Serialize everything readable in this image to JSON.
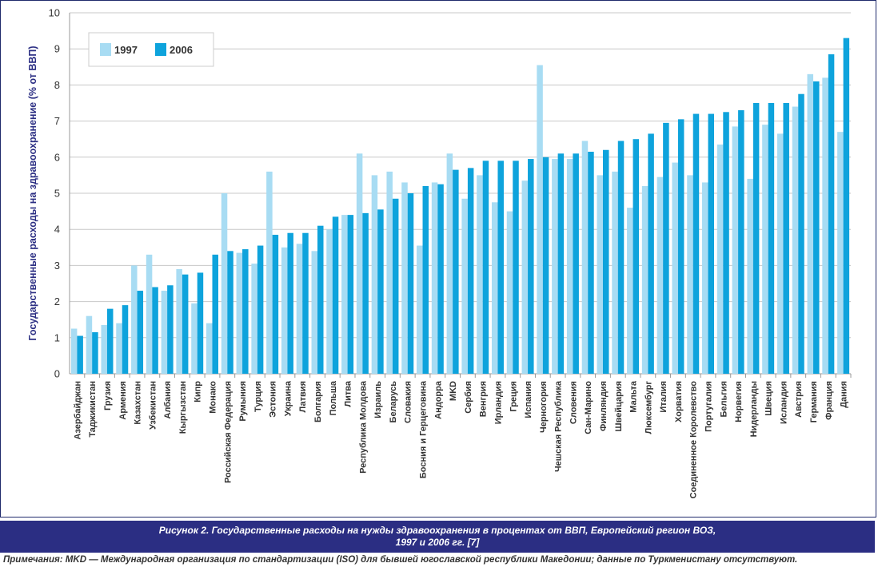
{
  "chart_data": {
    "type": "bar",
    "title": "",
    "xlabel": "",
    "ylabel": "Государственные расходы на здравоохранение (% от ВВП)",
    "ylim": [
      0,
      10
    ],
    "yticks": [
      "0",
      "1",
      "2",
      "3",
      "4",
      "5",
      "6",
      "7",
      "8",
      "9",
      "10"
    ],
    "grid": true,
    "legend_position": "top-left",
    "colors": {
      "1997": "#a8dcf3",
      "2006": "#0ea3dc"
    },
    "categories": [
      "Азербайджан",
      "Таджикистан",
      "Грузия",
      "Армения",
      "Казахстан",
      "Узбекистан",
      "Албания",
      "Кыргызстан",
      "Кипр",
      "Монако",
      "Российская Федерация",
      "Румыния",
      "Турция",
      "Эстония",
      "Украина",
      "Латвия",
      "Болгария",
      "Польша",
      "Литва",
      "Республика Молдова",
      "Израиль",
      "Беларусь",
      "Словакия",
      "Босния и Герцеговина",
      "Андорра",
      "MKD",
      "Сербия",
      "Венгрия",
      "Ирландия",
      "Греция",
      "Испания",
      "Черногория",
      "Чешская Республика",
      "Словения",
      "Сан-Марино",
      "Финляндия",
      "Швейцария",
      "Мальта",
      "Люксембург",
      "Италия",
      "Хорватия",
      "Соединенное Королевство",
      "Португалия",
      "Бельгия",
      "Норвегия",
      "Нидерланды",
      "Швеция",
      "Исландия",
      "Австрия",
      "Германия",
      "Франция",
      "Дания"
    ],
    "series": [
      {
        "name": "1997",
        "values": [
          1.25,
          1.6,
          1.35,
          1.4,
          3.0,
          3.3,
          2.3,
          2.9,
          1.95,
          1.4,
          5.0,
          3.35,
          3.05,
          5.6,
          3.5,
          3.6,
          3.4,
          4.0,
          4.4,
          6.1,
          5.5,
          5.6,
          5.3,
          3.55,
          5.3,
          6.1,
          4.85,
          5.5,
          4.75,
          4.5,
          5.35,
          8.55,
          5.95,
          5.95,
          6.45,
          5.5,
          5.6,
          4.6,
          5.2,
          5.45,
          5.85,
          5.5,
          5.3,
          6.35,
          6.85,
          5.4,
          6.9,
          6.65,
          7.4,
          8.3,
          8.2,
          6.7
        ]
      },
      {
        "name": "2006",
        "values": [
          1.05,
          1.15,
          1.8,
          1.9,
          2.3,
          2.4,
          2.45,
          2.75,
          2.8,
          3.3,
          3.4,
          3.45,
          3.55,
          3.85,
          3.9,
          3.9,
          4.1,
          4.35,
          4.4,
          4.45,
          4.55,
          4.85,
          5.0,
          5.2,
          5.25,
          5.65,
          5.7,
          5.9,
          5.9,
          5.9,
          5.95,
          6.0,
          6.1,
          6.1,
          6.15,
          6.2,
          6.45,
          6.5,
          6.65,
          6.95,
          7.05,
          7.2,
          7.2,
          7.25,
          7.3,
          7.5,
          7.5,
          7.5,
          7.75,
          8.1,
          8.85,
          9.3
        ]
      }
    ]
  },
  "caption": {
    "line1": "Рисунок 2.  Государственные расходы на нужды здравоохранения в процентах от ВВП, Европейский регион ВОЗ,",
    "line2": "1997 и 2006 гг. [7]"
  },
  "notes": "Примечания: MKD — Международная организация по стандартизации (ISO) для бывшей югославской республики Македонии; данные по Туркменистану отсутствуют."
}
